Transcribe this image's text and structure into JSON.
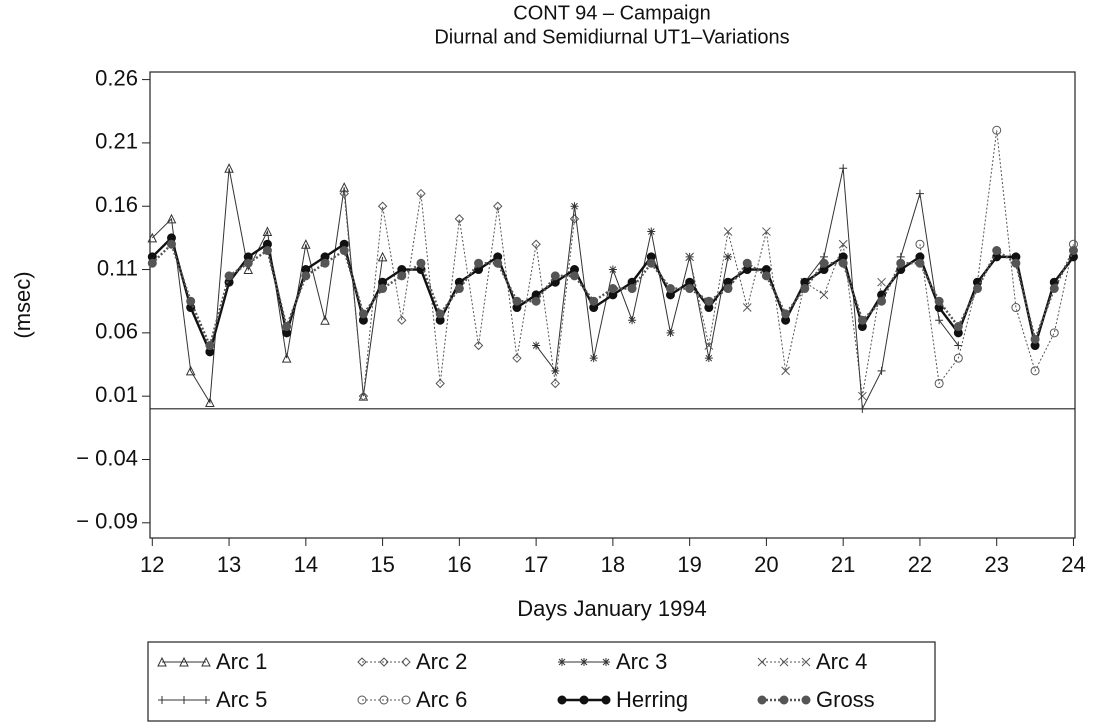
{
  "chart_data": {
    "type": "line",
    "title": "CONT 94 – Campaign",
    "subtitle": "Diurnal and Semidiurnal UT1–Variations",
    "x_label": "Days January 1994",
    "y_label": "(msec)",
    "x": [
      12,
      12.25,
      12.5,
      12.75,
      13,
      13.25,
      13.5,
      13.75,
      14,
      14.25,
      14.5,
      14.75,
      15,
      15.25,
      15.5,
      15.75,
      16,
      16.25,
      16.5,
      16.75,
      17,
      17.25,
      17.5,
      17.75,
      18,
      18.25,
      18.5,
      18.75,
      19,
      19.25,
      19.5,
      19.75,
      20,
      20.25,
      20.5,
      20.75,
      21,
      21.25,
      21.5,
      21.75,
      22,
      22.25,
      22.5,
      22.75,
      23,
      23.25,
      23.5,
      23.75,
      24
    ],
    "xlim": [
      11.97,
      24.02
    ],
    "xticks": [
      12,
      13,
      14,
      15,
      16,
      17,
      18,
      19,
      20,
      21,
      22,
      23,
      24
    ],
    "ylim": [
      -0.102,
      0.266
    ],
    "yticks": [
      {
        "value": -0.09,
        "label": "− 0.09"
      },
      {
        "value": -0.04,
        "label": "− 0.04"
      },
      0.01,
      0.06,
      0.11,
      0.16,
      0.21,
      0.26
    ],
    "reference_line": 0,
    "series": [
      {
        "name": "Arc 1",
        "color": "#333333",
        "marker": "triangle",
        "dashed": false,
        "values": [
          0.135,
          0.15,
          0.03,
          0.005,
          0.19,
          0.11,
          0.14,
          0.04,
          0.13,
          0.07,
          0.175,
          0.01,
          0.12,
          null,
          null,
          null,
          null,
          null,
          null,
          null,
          null,
          null,
          null,
          null,
          null,
          null,
          null,
          null,
          null,
          null,
          null,
          null,
          null,
          null,
          null,
          null,
          null,
          null,
          null,
          null,
          null,
          null,
          null,
          null,
          null,
          null,
          null,
          null,
          null
        ]
      },
      {
        "name": "Arc 2",
        "color": "#555555",
        "marker": "diamond",
        "dashed": true,
        "values": [
          null,
          null,
          null,
          null,
          null,
          null,
          null,
          null,
          null,
          null,
          0.17,
          0.01,
          0.16,
          0.07,
          0.17,
          0.02,
          0.15,
          0.05,
          0.16,
          0.04,
          0.13,
          0.02,
          0.15,
          null,
          null,
          null,
          null,
          null,
          null,
          null,
          null,
          null,
          null,
          null,
          null,
          null,
          null,
          null,
          null,
          null,
          null,
          null,
          null,
          null,
          null,
          null,
          null,
          null,
          null
        ]
      },
      {
        "name": "Arc 3",
        "color": "#333333",
        "marker": "star",
        "dashed": false,
        "values": [
          null,
          null,
          null,
          null,
          null,
          null,
          null,
          null,
          null,
          null,
          null,
          null,
          null,
          null,
          null,
          null,
          null,
          null,
          null,
          null,
          0.05,
          0.03,
          0.16,
          0.04,
          0.11,
          0.07,
          0.14,
          0.06,
          0.12,
          0.04,
          0.12,
          null,
          null,
          null,
          null,
          null,
          null,
          null,
          null,
          null,
          null,
          null,
          null,
          null,
          null,
          null,
          null,
          null,
          null
        ]
      },
      {
        "name": "Arc 4",
        "color": "#555555",
        "marker": "cross",
        "dashed": true,
        "values": [
          null,
          null,
          null,
          null,
          null,
          null,
          null,
          null,
          null,
          null,
          null,
          null,
          null,
          null,
          null,
          null,
          null,
          null,
          null,
          null,
          null,
          null,
          null,
          null,
          null,
          null,
          null,
          null,
          0.12,
          0.05,
          0.14,
          0.08,
          0.14,
          0.03,
          0.1,
          0.09,
          0.13,
          0.01,
          0.1,
          null,
          null,
          null,
          null,
          null,
          null,
          null,
          null,
          null,
          null
        ]
      },
      {
        "name": "Arc 5",
        "color": "#333333",
        "marker": "plus",
        "dashed": false,
        "values": [
          null,
          null,
          null,
          null,
          null,
          null,
          null,
          null,
          null,
          null,
          null,
          null,
          null,
          null,
          null,
          null,
          null,
          null,
          null,
          null,
          null,
          null,
          null,
          null,
          null,
          null,
          null,
          null,
          null,
          null,
          null,
          null,
          null,
          null,
          0.1,
          0.12,
          0.19,
          0.0,
          0.03,
          0.12,
          0.17,
          0.07,
          0.05,
          null,
          null,
          null,
          null,
          null,
          null
        ]
      },
      {
        "name": "Arc 6",
        "color": "#555555",
        "marker": "circle",
        "dashed": true,
        "values": [
          null,
          null,
          null,
          null,
          null,
          null,
          null,
          null,
          null,
          null,
          null,
          null,
          null,
          null,
          null,
          null,
          null,
          null,
          null,
          null,
          null,
          null,
          null,
          null,
          null,
          null,
          null,
          null,
          null,
          null,
          null,
          null,
          null,
          null,
          null,
          null,
          null,
          null,
          null,
          null,
          0.13,
          0.02,
          0.04,
          0.1,
          0.22,
          0.08,
          0.03,
          0.06,
          0.13
        ]
      },
      {
        "name": "Herring",
        "color": "#111111",
        "marker": "dot",
        "dashed": false,
        "values": [
          0.12,
          0.135,
          0.08,
          0.045,
          0.1,
          0.12,
          0.13,
          0.06,
          0.11,
          0.12,
          0.13,
          0.07,
          0.1,
          0.11,
          0.11,
          0.07,
          0.1,
          0.11,
          0.12,
          0.08,
          0.09,
          0.1,
          0.11,
          0.08,
          0.09,
          0.1,
          0.12,
          0.09,
          0.1,
          0.08,
          0.1,
          0.11,
          0.11,
          0.07,
          0.1,
          0.11,
          0.12,
          0.065,
          0.09,
          0.11,
          0.12,
          0.08,
          0.06,
          0.1,
          0.12,
          0.12,
          0.05,
          0.1,
          0.12
        ]
      },
      {
        "name": "Gross",
        "color": "#555555",
        "marker": "dot",
        "dashed": true,
        "values": [
          0.115,
          0.13,
          0.085,
          0.05,
          0.105,
          0.115,
          0.125,
          0.065,
          0.105,
          0.115,
          0.125,
          0.075,
          0.095,
          0.105,
          0.115,
          0.075,
          0.095,
          0.115,
          0.115,
          0.085,
          0.085,
          0.105,
          0.105,
          0.085,
          0.095,
          0.095,
          0.115,
          0.095,
          0.095,
          0.085,
          0.095,
          0.115,
          0.105,
          0.075,
          0.095,
          0.115,
          0.115,
          0.07,
          0.085,
          0.115,
          0.115,
          0.085,
          0.065,
          0.095,
          0.125,
          0.115,
          0.055,
          0.095,
          0.125
        ]
      }
    ]
  }
}
